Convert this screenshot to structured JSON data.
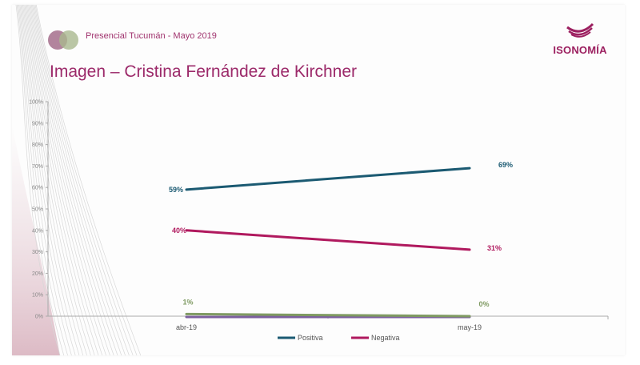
{
  "header": {
    "subtitle": "Presencial Tucumán - Mayo 2019",
    "title": "Imagen – Cristina Fernández de Kirchner",
    "brand": "ISONOMÍA"
  },
  "colors": {
    "positiva": "#1b5a72",
    "negativa": "#b0195e",
    "ns_nc": "#7f9a62",
    "otro": "#7b5f9e",
    "brand": "#9c2060"
  },
  "chart_data": {
    "type": "line",
    "title": "Imagen – Cristina Fernández de Kirchner",
    "categories": [
      "abr-19",
      "may-19"
    ],
    "ylim": [
      0,
      100
    ],
    "yticks": [
      "0%",
      "10%",
      "20%",
      "30%",
      "40%",
      "50%",
      "60%",
      "70%",
      "80%",
      "90%",
      "100%"
    ],
    "grid": false,
    "legend": "bottom",
    "series": [
      {
        "name": "Positiva",
        "values": [
          59,
          69
        ],
        "labels": [
          "59%",
          "69%"
        ],
        "color_key": "positiva",
        "in_legend": true
      },
      {
        "name": "Negativa",
        "values": [
          40,
          31
        ],
        "labels": [
          "40%",
          "31%"
        ],
        "color_key": "negativa",
        "in_legend": true
      },
      {
        "name": "",
        "values": [
          1,
          0
        ],
        "labels": [
          "1%",
          "0%"
        ],
        "color_key": "ns_nc",
        "in_legend": false
      },
      {
        "name": "",
        "values": [
          0,
          0
        ],
        "labels": [
          "",
          ""
        ],
        "color_key": "otro",
        "in_legend": false
      }
    ]
  }
}
